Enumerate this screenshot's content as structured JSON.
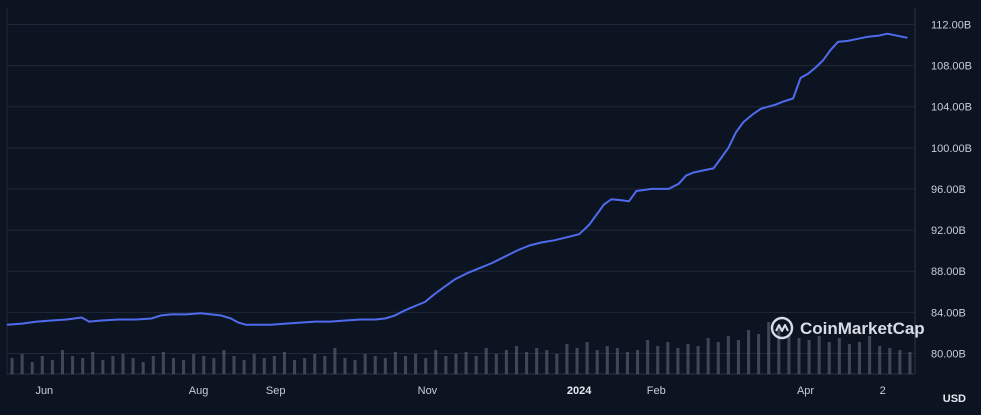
{
  "chart_data": {
    "type": "line",
    "unit_label": "USD",
    "brand": "CoinMarketCap",
    "ylim": [
      78.0,
      113.6
    ],
    "xlim": [
      0,
      365
    ],
    "y_ticks": [
      "80.00B",
      "84.00B",
      "88.00B",
      "92.00B",
      "96.00B",
      "100.00B",
      "104.00B",
      "108.00B",
      "112.00B"
    ],
    "y_tick_values": [
      80,
      84,
      88,
      92,
      96,
      100,
      104,
      108,
      112
    ],
    "x_ticks": [
      {
        "label": "Jun",
        "at": 15,
        "bold": false
      },
      {
        "label": "Aug",
        "at": 77,
        "bold": false
      },
      {
        "label": "Sep",
        "at": 108,
        "bold": false
      },
      {
        "label": "Nov",
        "at": 169,
        "bold": false
      },
      {
        "label": "2024",
        "at": 230,
        "bold": true
      },
      {
        "label": "Feb",
        "at": 261,
        "bold": false
      },
      {
        "label": "Apr",
        "at": 321,
        "bold": false
      },
      {
        "label": "2",
        "at": 352,
        "bold": false
      }
    ],
    "grid": true,
    "series": [
      {
        "color": "#4f6bed",
        "x": [
          0,
          6,
          12,
          18,
          24,
          30,
          33,
          38,
          45,
          52,
          58,
          62,
          66,
          72,
          78,
          82,
          86,
          90,
          93,
          96,
          100,
          106,
          112,
          118,
          124,
          130,
          136,
          142,
          148,
          152,
          156,
          160,
          164,
          168,
          172,
          176,
          180,
          185,
          190,
          195,
          200,
          205,
          210,
          215,
          220,
          225,
          230,
          234,
          237,
          240,
          243,
          247,
          250,
          253,
          256,
          259,
          262,
          266,
          270,
          273,
          276,
          280,
          284,
          287,
          290,
          293,
          296,
          300,
          303,
          306,
          309,
          312,
          316,
          319,
          322,
          325,
          328,
          331,
          334,
          338,
          342,
          346,
          350,
          354,
          358,
          362
        ],
        "values": [
          82.8,
          82.9,
          83.1,
          83.2,
          83.3,
          83.5,
          83.1,
          83.2,
          83.3,
          83.3,
          83.4,
          83.7,
          83.8,
          83.8,
          83.9,
          83.8,
          83.7,
          83.4,
          83.0,
          82.8,
          82.8,
          82.8,
          82.9,
          83.0,
          83.1,
          83.1,
          83.2,
          83.3,
          83.3,
          83.4,
          83.7,
          84.2,
          84.6,
          85.0,
          85.8,
          86.5,
          87.2,
          87.8,
          88.3,
          88.8,
          89.4,
          90.0,
          90.5,
          90.8,
          91.0,
          91.3,
          91.6,
          92.5,
          93.5,
          94.5,
          95.0,
          94.9,
          94.8,
          95.8,
          95.9,
          96.0,
          96.0,
          96.0,
          96.5,
          97.3,
          97.6,
          97.8,
          98.0,
          99.0,
          100.0,
          101.5,
          102.5,
          103.3,
          103.8,
          104.0,
          104.2,
          104.5,
          104.8,
          106.8,
          107.2,
          107.8,
          108.5,
          109.5,
          110.3,
          110.4,
          110.6,
          110.8,
          110.9,
          111.1,
          110.9,
          110.7
        ]
      }
    ],
    "volume": {
      "color": "#6b7088",
      "values": [
        0.8,
        1.0,
        0.6,
        0.9,
        0.7,
        1.2,
        0.9,
        0.8,
        1.1,
        0.7,
        0.9,
        1.0,
        0.8,
        0.6,
        0.9,
        1.1,
        0.8,
        0.7,
        1.0,
        0.9,
        0.8,
        1.2,
        0.9,
        0.7,
        1.0,
        0.8,
        0.9,
        1.1,
        0.7,
        0.8,
        1.0,
        0.9,
        1.3,
        0.8,
        0.7,
        1.0,
        0.9,
        0.8,
        1.1,
        0.9,
        1.0,
        0.8,
        1.2,
        0.9,
        1.0,
        1.1,
        0.9,
        1.3,
        1.0,
        1.2,
        1.4,
        1.1,
        1.3,
        1.2,
        1.0,
        1.5,
        1.3,
        1.6,
        1.2,
        1.4,
        1.3,
        1.1,
        1.2,
        1.7,
        1.4,
        1.6,
        1.3,
        1.5,
        1.4,
        1.8,
        1.6,
        1.9,
        1.7,
        2.2,
        2.0,
        2.6,
        2.3,
        2.0,
        1.8,
        1.7,
        1.9,
        1.6,
        1.8,
        1.5,
        1.6,
        1.9,
        1.4,
        1.3,
        1.2,
        1.1
      ]
    }
  }
}
